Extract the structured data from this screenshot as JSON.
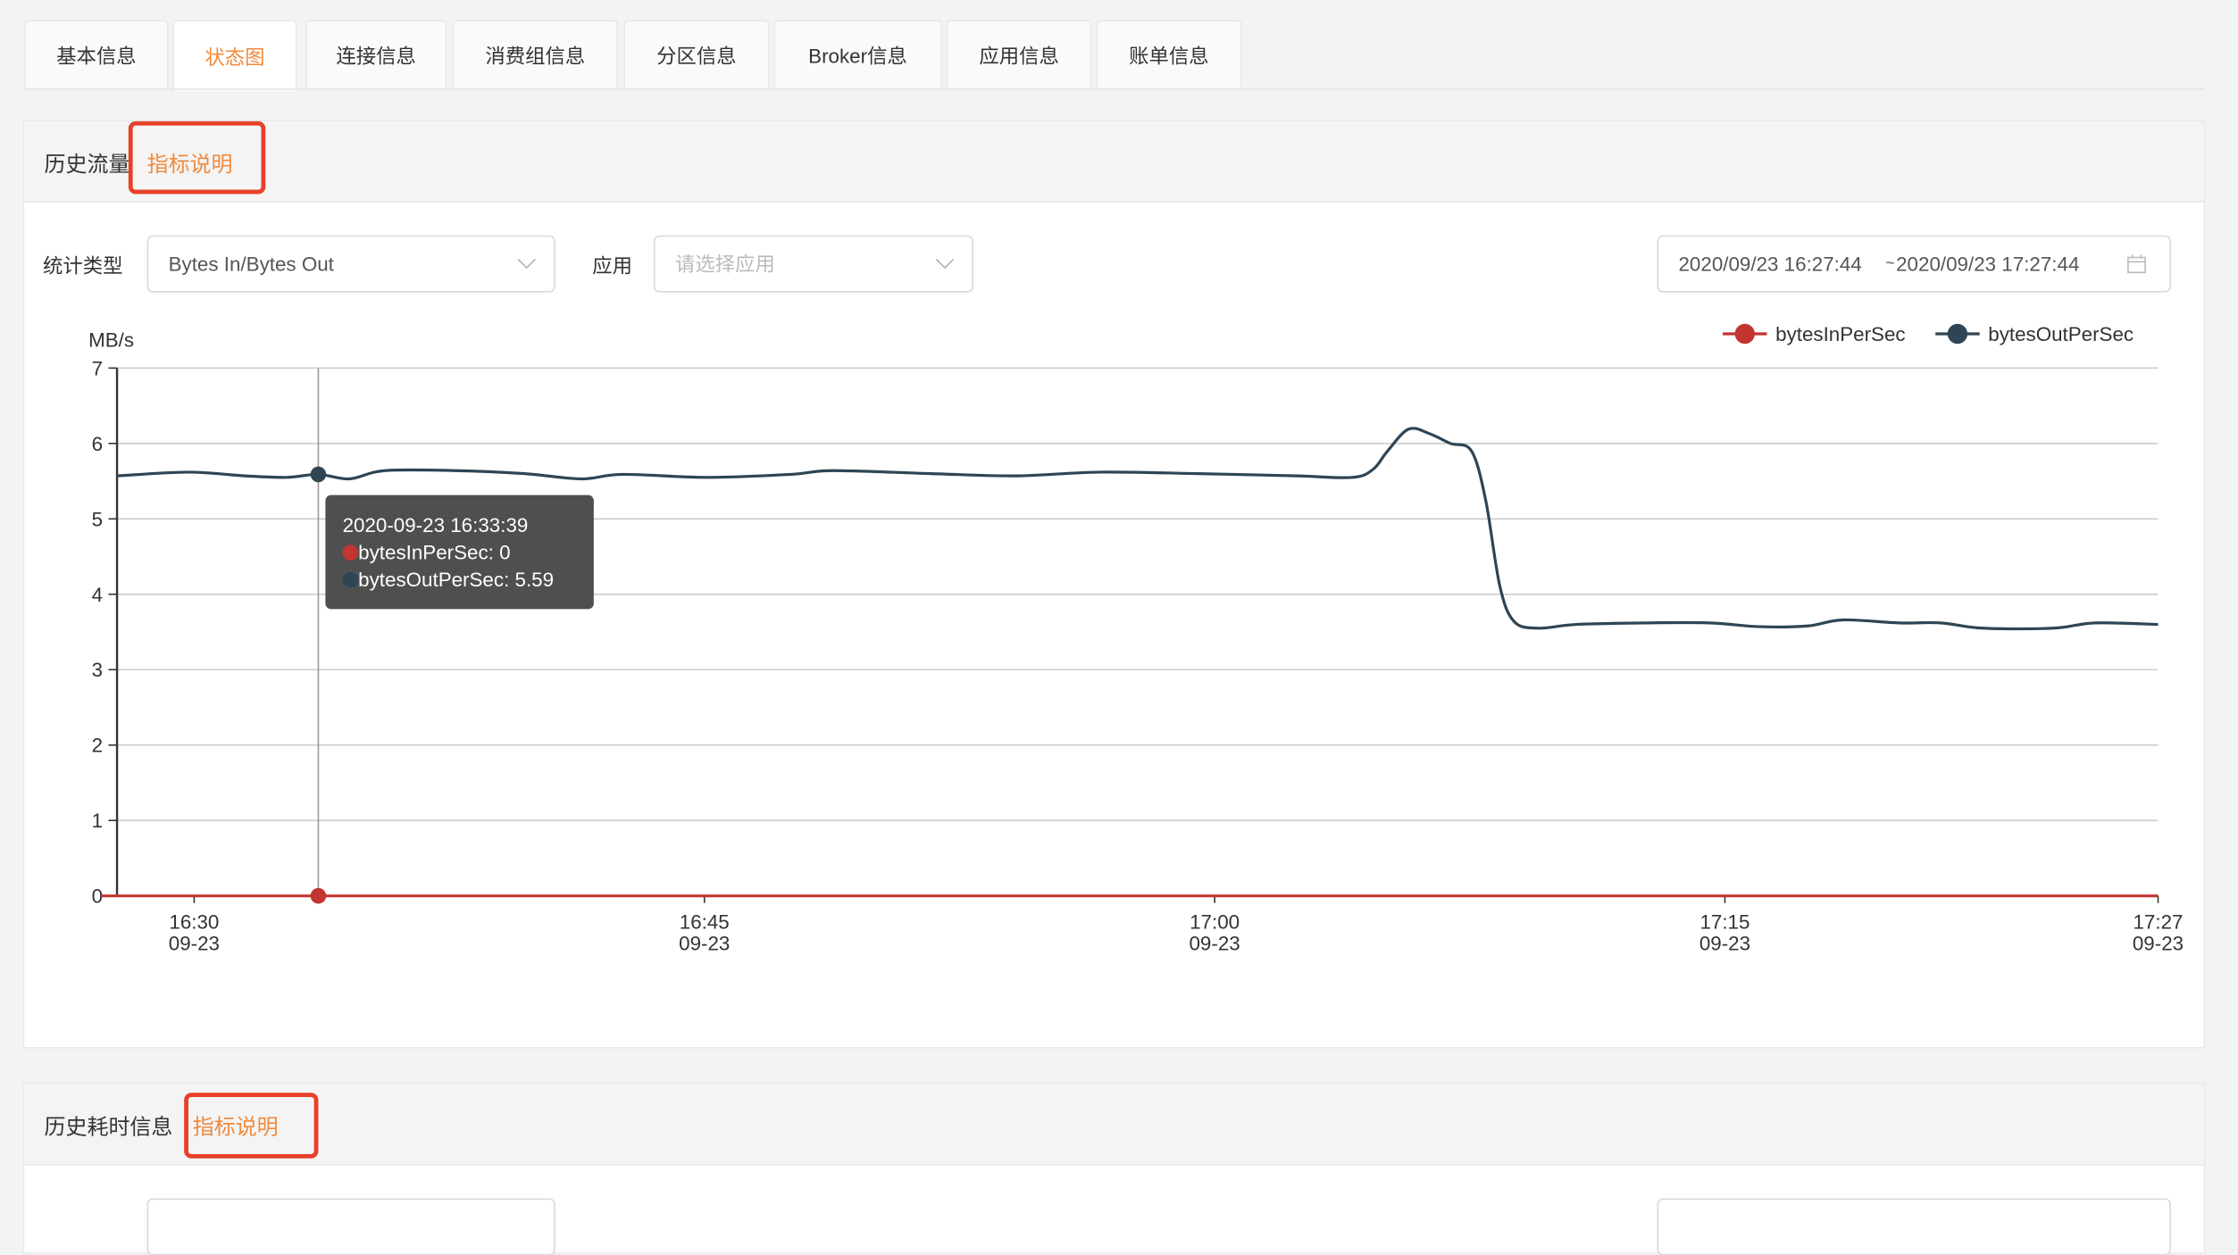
{
  "tabs": [
    {
      "label": "基本信息"
    },
    {
      "label": "状态图",
      "active": true
    },
    {
      "label": "连接信息"
    },
    {
      "label": "消费组信息"
    },
    {
      "label": "分区信息"
    },
    {
      "label": "Broker信息"
    },
    {
      "label": "应用信息"
    },
    {
      "label": "账单信息"
    }
  ],
  "traffic": {
    "title": "历史流量",
    "help_link": "指标说明",
    "filters": {
      "stat_type_label": "统计类型",
      "stat_type_value": "Bytes In/Bytes Out",
      "app_label": "应用",
      "app_placeholder": "请选择应用",
      "date_start": "2020/09/23 16:27:44",
      "date_sep": "~",
      "date_end": "2020/09/23 17:27:44"
    },
    "tooltip": {
      "time": "2020-09-23 16:33:39",
      "in_label": "bytesInPerSec: 0",
      "out_label": "bytesOutPerSec: 5.59"
    }
  },
  "latency": {
    "title": "历史耗时信息",
    "help_link": "指标说明"
  },
  "colors": {
    "accent": "#f08a3c",
    "bytesIn": "#c23531",
    "bytesOut": "#2f4554",
    "highlight_box": "#e8402a"
  },
  "chart_data": {
    "type": "line",
    "ylabel": "MB/s",
    "ylim": [
      0,
      7
    ],
    "yticks": [
      "0",
      "1",
      "2",
      "3",
      "4",
      "5",
      "6",
      "7"
    ],
    "xlim": [
      "16:27:44",
      "17:27:44"
    ],
    "xticks": [
      {
        "time": "16:30",
        "date": "09-23"
      },
      {
        "time": "16:45",
        "date": "09-23"
      },
      {
        "time": "17:00",
        "date": "09-23"
      },
      {
        "time": "17:15",
        "date": "09-23"
      },
      {
        "time": "17:27",
        "date": "09-23"
      }
    ],
    "grid": true,
    "legend": "top-right",
    "hover_time": "16:33:39",
    "series": [
      {
        "name": "bytesInPerSec",
        "points": [
          [
            "16:27:44",
            0
          ],
          [
            "16:33:39",
            0
          ],
          [
            "17:27:44",
            0
          ]
        ]
      },
      {
        "name": "bytesOutPerSec",
        "points": [
          [
            "16:27:44",
            5.57
          ],
          [
            "16:29:50",
            5.62
          ],
          [
            "16:31:29",
            5.57
          ],
          [
            "16:32:43",
            5.55
          ],
          [
            "16:33:39",
            5.59
          ],
          [
            "16:34:34",
            5.53
          ],
          [
            "16:35:36",
            5.64
          ],
          [
            "16:37:40",
            5.64
          ],
          [
            "16:39:43",
            5.6
          ],
          [
            "16:41:22",
            5.53
          ],
          [
            "16:42:36",
            5.59
          ],
          [
            "16:45:05",
            5.55
          ],
          [
            "16:47:33",
            5.59
          ],
          [
            "16:48:47",
            5.64
          ],
          [
            "16:51:40",
            5.6
          ],
          [
            "16:54:09",
            5.57
          ],
          [
            "16:56:38",
            5.62
          ],
          [
            "16:59:31",
            5.6
          ],
          [
            "17:02:24",
            5.57
          ],
          [
            "17:04:03",
            5.55
          ],
          [
            "17:04:40",
            5.66
          ],
          [
            "17:05:05",
            5.9
          ],
          [
            "17:05:42",
            6.19
          ],
          [
            "17:06:19",
            6.13
          ],
          [
            "17:06:56",
            6.0
          ],
          [
            "17:07:33",
            5.9
          ],
          [
            "17:07:58",
            5.25
          ],
          [
            "17:08:23",
            4.11
          ],
          [
            "17:08:48",
            3.64
          ],
          [
            "17:09:30",
            3.55
          ],
          [
            "17:10:38",
            3.6
          ],
          [
            "17:12:42",
            3.62
          ],
          [
            "17:14:33",
            3.62
          ],
          [
            "17:16:00",
            3.57
          ],
          [
            "17:17:26",
            3.58
          ],
          [
            "17:18:28",
            3.66
          ],
          [
            "17:20:07",
            3.62
          ],
          [
            "17:21:21",
            3.62
          ],
          [
            "17:22:35",
            3.55
          ],
          [
            "17:24:39",
            3.55
          ],
          [
            "17:25:53",
            3.62
          ],
          [
            "17:27:44",
            3.6
          ]
        ]
      }
    ]
  }
}
